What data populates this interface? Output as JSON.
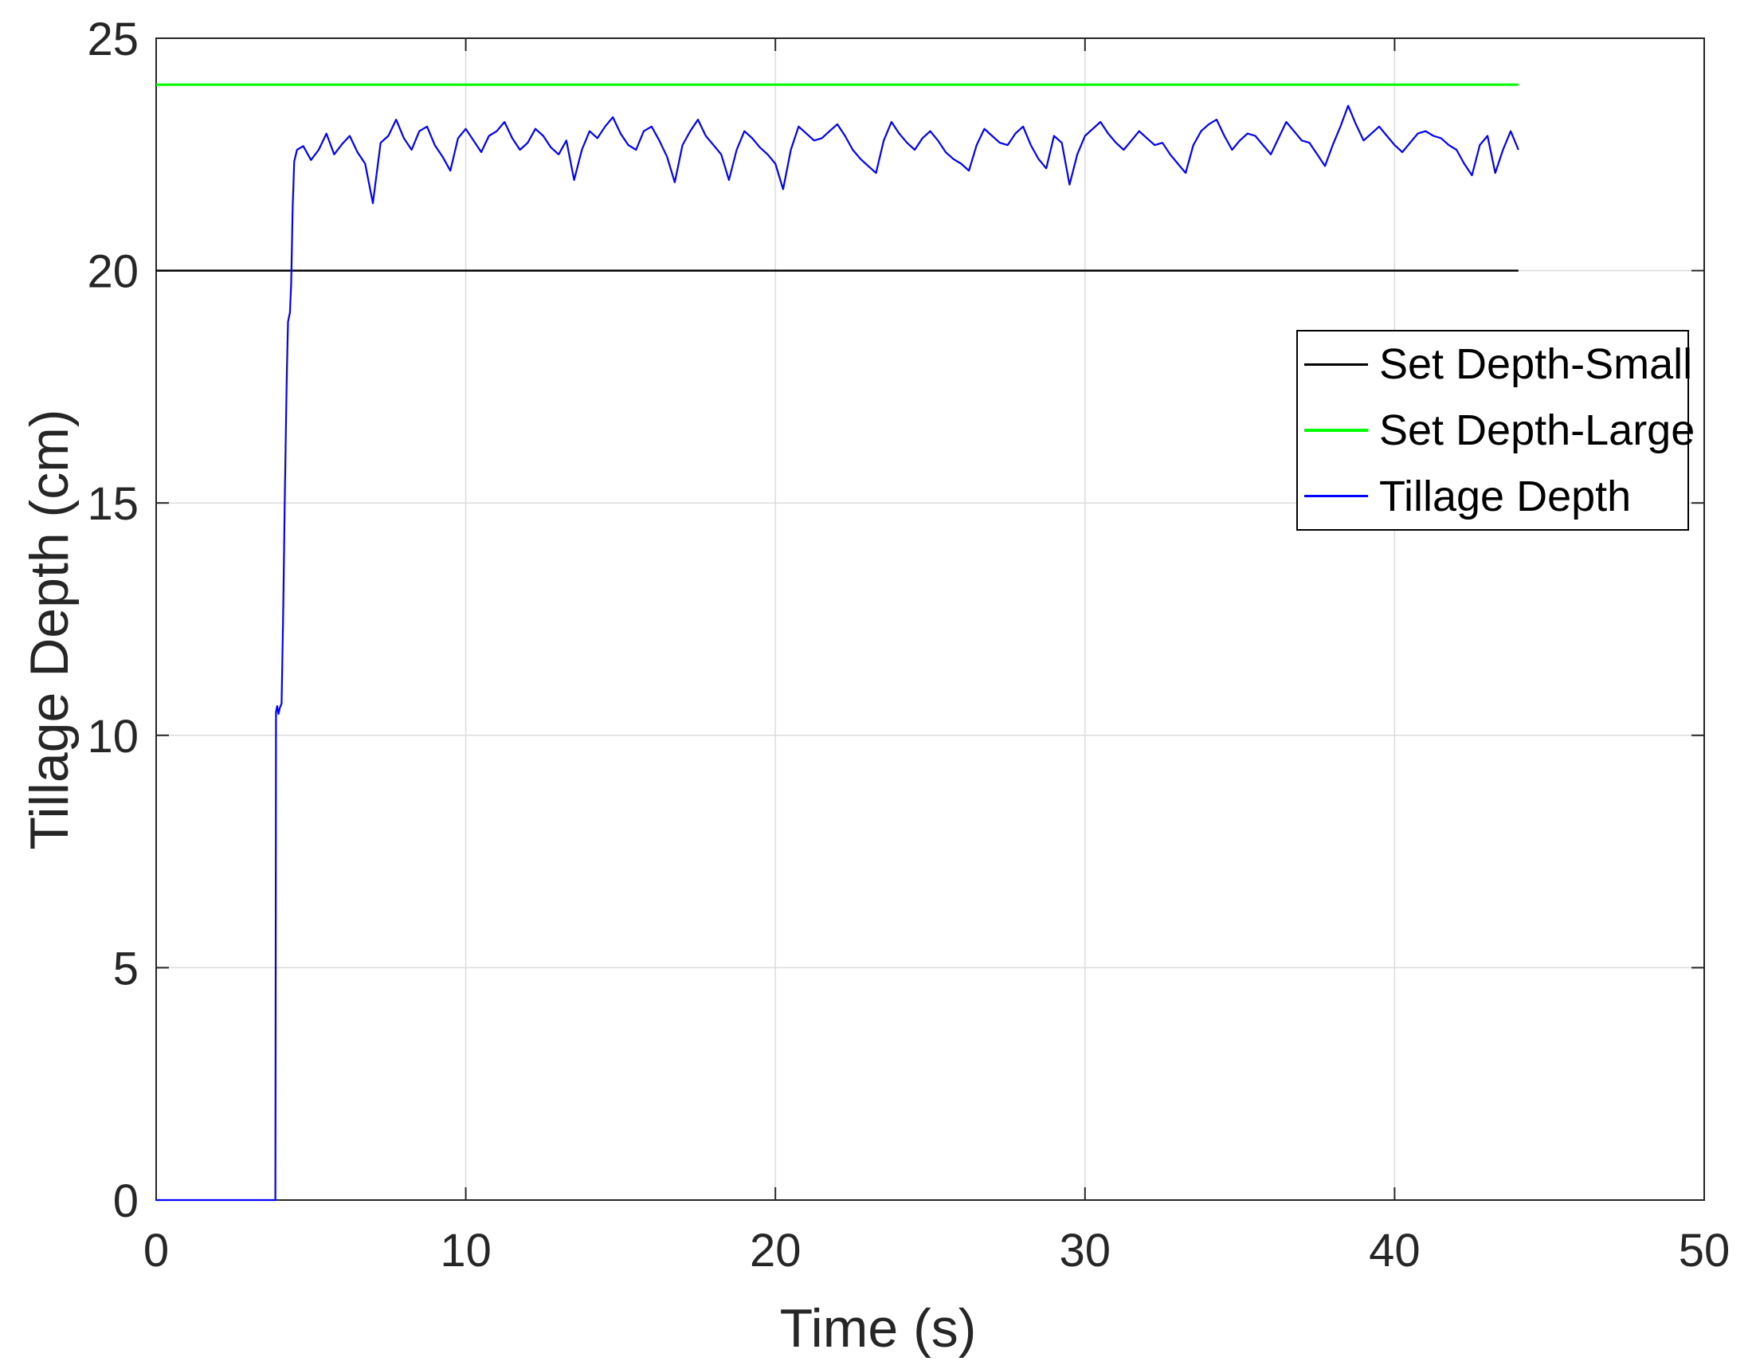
{
  "chart_data": {
    "type": "line",
    "title": "",
    "xlabel": "Time (s)",
    "ylabel": "Tillage Depth (cm)",
    "xlim": [
      0,
      50
    ],
    "ylim": [
      0,
      25
    ],
    "xticks": [
      0,
      10,
      20,
      30,
      40,
      50
    ],
    "yticks": [
      0,
      5,
      10,
      15,
      20,
      25
    ],
    "grid": true,
    "background_color": "#ffffff",
    "axis_color": "#262626",
    "grid_color": "#dcdcdc",
    "legend": {
      "position": "upper-right-inside",
      "border_color": "#000000",
      "entries": [
        {
          "label": "Set Depth-Small",
          "color": "#000000"
        },
        {
          "label": "Set Depth-Large",
          "color": "#00ff00"
        },
        {
          "label": "Tillage Depth",
          "color": "#0000ff"
        }
      ]
    },
    "series": [
      {
        "name": "Set Depth-Small",
        "color": "#000000",
        "line_width": 2.5,
        "points": [
          [
            0,
            20
          ],
          [
            44,
            20
          ]
        ]
      },
      {
        "name": "Set Depth-Large",
        "color": "#00ff00",
        "line_width": 3,
        "points": [
          [
            0,
            24
          ],
          [
            44,
            24
          ]
        ]
      },
      {
        "name": "Tillage Depth",
        "color": "#0000ff",
        "line_width": 2.2,
        "points": [
          [
            0,
            0
          ],
          [
            3.85,
            0
          ],
          [
            3.87,
            10.5
          ],
          [
            3.91,
            10.63
          ],
          [
            3.95,
            10.46
          ],
          [
            4.0,
            10.6
          ],
          [
            4.05,
            10.68
          ],
          [
            4.1,
            12.5
          ],
          [
            4.16,
            15.4
          ],
          [
            4.22,
            17.8
          ],
          [
            4.26,
            18.9
          ],
          [
            4.32,
            19.1
          ],
          [
            4.36,
            19.7
          ],
          [
            4.41,
            21.4
          ],
          [
            4.46,
            22.35
          ],
          [
            4.55,
            22.6
          ],
          [
            4.75,
            22.68
          ],
          [
            5.0,
            22.38
          ],
          [
            5.25,
            22.6
          ],
          [
            5.5,
            22.95
          ],
          [
            5.75,
            22.5
          ],
          [
            6.0,
            22.72
          ],
          [
            6.25,
            22.9
          ],
          [
            6.5,
            22.55
          ],
          [
            6.75,
            22.3
          ],
          [
            7.0,
            21.45
          ],
          [
            7.25,
            22.75
          ],
          [
            7.5,
            22.9
          ],
          [
            7.75,
            23.25
          ],
          [
            8.0,
            22.85
          ],
          [
            8.25,
            22.6
          ],
          [
            8.5,
            23.0
          ],
          [
            8.75,
            23.1
          ],
          [
            9.0,
            22.7
          ],
          [
            9.25,
            22.45
          ],
          [
            9.5,
            22.15
          ],
          [
            9.75,
            22.85
          ],
          [
            10.0,
            23.05
          ],
          [
            10.25,
            22.8
          ],
          [
            10.5,
            22.55
          ],
          [
            10.75,
            22.9
          ],
          [
            11.0,
            23.0
          ],
          [
            11.25,
            23.2
          ],
          [
            11.5,
            22.85
          ],
          [
            11.75,
            22.6
          ],
          [
            12.0,
            22.75
          ],
          [
            12.25,
            23.05
          ],
          [
            12.5,
            22.9
          ],
          [
            12.75,
            22.65
          ],
          [
            13.0,
            22.5
          ],
          [
            13.25,
            22.8
          ],
          [
            13.5,
            21.95
          ],
          [
            13.75,
            22.6
          ],
          [
            14.0,
            23.0
          ],
          [
            14.25,
            22.85
          ],
          [
            14.5,
            23.1
          ],
          [
            14.75,
            23.3
          ],
          [
            15.0,
            22.95
          ],
          [
            15.25,
            22.7
          ],
          [
            15.5,
            22.6
          ],
          [
            15.75,
            23.0
          ],
          [
            16.0,
            23.1
          ],
          [
            16.25,
            22.8
          ],
          [
            16.5,
            22.45
          ],
          [
            16.75,
            21.9
          ],
          [
            17.0,
            22.7
          ],
          [
            17.25,
            23.0
          ],
          [
            17.5,
            23.25
          ],
          [
            17.75,
            22.9
          ],
          [
            18.0,
            22.7
          ],
          [
            18.25,
            22.5
          ],
          [
            18.5,
            21.95
          ],
          [
            18.75,
            22.6
          ],
          [
            19.0,
            23.0
          ],
          [
            19.25,
            22.85
          ],
          [
            19.5,
            22.65
          ],
          [
            19.75,
            22.5
          ],
          [
            20.0,
            22.3
          ],
          [
            20.25,
            21.75
          ],
          [
            20.5,
            22.6
          ],
          [
            20.75,
            23.1
          ],
          [
            21.0,
            22.95
          ],
          [
            21.25,
            22.8
          ],
          [
            21.5,
            22.85
          ],
          [
            21.75,
            23.0
          ],
          [
            22.0,
            23.15
          ],
          [
            22.25,
            22.9
          ],
          [
            22.5,
            22.6
          ],
          [
            22.75,
            22.4
          ],
          [
            23.0,
            22.25
          ],
          [
            23.25,
            22.1
          ],
          [
            23.5,
            22.8
          ],
          [
            23.75,
            23.2
          ],
          [
            24.0,
            22.95
          ],
          [
            24.25,
            22.75
          ],
          [
            24.5,
            22.6
          ],
          [
            24.75,
            22.85
          ],
          [
            25.0,
            23.0
          ],
          [
            25.25,
            22.8
          ],
          [
            25.5,
            22.55
          ],
          [
            25.75,
            22.4
          ],
          [
            26.0,
            22.3
          ],
          [
            26.25,
            22.15
          ],
          [
            26.5,
            22.7
          ],
          [
            26.75,
            23.05
          ],
          [
            27.0,
            22.9
          ],
          [
            27.25,
            22.75
          ],
          [
            27.5,
            22.7
          ],
          [
            27.75,
            22.95
          ],
          [
            28.0,
            23.1
          ],
          [
            28.25,
            22.7
          ],
          [
            28.5,
            22.4
          ],
          [
            28.75,
            22.2
          ],
          [
            29.0,
            22.9
          ],
          [
            29.25,
            22.75
          ],
          [
            29.5,
            21.85
          ],
          [
            29.75,
            22.5
          ],
          [
            30.0,
            22.9
          ],
          [
            30.25,
            23.05
          ],
          [
            30.5,
            23.2
          ],
          [
            30.75,
            22.95
          ],
          [
            31.0,
            22.75
          ],
          [
            31.25,
            22.6
          ],
          [
            31.5,
            22.8
          ],
          [
            31.75,
            23.0
          ],
          [
            32.0,
            22.85
          ],
          [
            32.25,
            22.7
          ],
          [
            32.5,
            22.75
          ],
          [
            32.75,
            22.5
          ],
          [
            33.0,
            22.3
          ],
          [
            33.25,
            22.1
          ],
          [
            33.5,
            22.7
          ],
          [
            33.75,
            23.0
          ],
          [
            34.0,
            23.15
          ],
          [
            34.25,
            23.25
          ],
          [
            34.5,
            22.9
          ],
          [
            34.75,
            22.6
          ],
          [
            35.0,
            22.8
          ],
          [
            35.25,
            22.95
          ],
          [
            35.5,
            22.9
          ],
          [
            35.75,
            22.7
          ],
          [
            36.0,
            22.5
          ],
          [
            36.25,
            22.85
          ],
          [
            36.5,
            23.2
          ],
          [
            36.75,
            23.0
          ],
          [
            37.0,
            22.8
          ],
          [
            37.25,
            22.75
          ],
          [
            37.5,
            22.5
          ],
          [
            37.75,
            22.25
          ],
          [
            38.0,
            22.7
          ],
          [
            38.25,
            23.1
          ],
          [
            38.5,
            23.55
          ],
          [
            38.75,
            23.15
          ],
          [
            39.0,
            22.8
          ],
          [
            39.25,
            22.95
          ],
          [
            39.5,
            23.1
          ],
          [
            39.75,
            22.9
          ],
          [
            40.0,
            22.7
          ],
          [
            40.25,
            22.55
          ],
          [
            40.5,
            22.75
          ],
          [
            40.75,
            22.95
          ],
          [
            41.0,
            23.0
          ],
          [
            41.25,
            22.9
          ],
          [
            41.5,
            22.85
          ],
          [
            41.75,
            22.7
          ],
          [
            42.0,
            22.6
          ],
          [
            42.25,
            22.3
          ],
          [
            42.5,
            22.05
          ],
          [
            42.75,
            22.7
          ],
          [
            43.0,
            22.9
          ],
          [
            43.25,
            22.1
          ],
          [
            43.5,
            22.6
          ],
          [
            43.75,
            23.0
          ],
          [
            44.0,
            22.6
          ]
        ]
      }
    ]
  }
}
